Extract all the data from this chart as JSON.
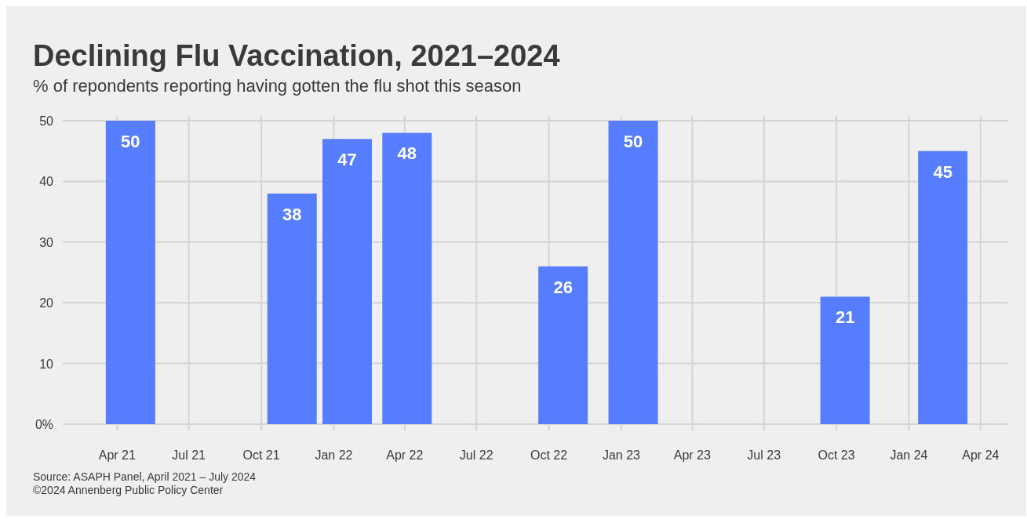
{
  "chart_data": {
    "type": "bar",
    "title": "Declining Flu Vaccination, 2021–2024",
    "subtitle": "% of repondents reporting having gotten the flu shot this season",
    "x": [
      "2021-04-18",
      "2021-11-09",
      "2022-01-18",
      "2022-04-04",
      "2022-10-19",
      "2023-01-16",
      "2023-10-12",
      "2024-02-13"
    ],
    "values": [
      50,
      38,
      47,
      48,
      26,
      50,
      21,
      45
    ],
    "color": "#577dff",
    "data_labels": true,
    "xlim": [
      "2021-01-22",
      "2024-05-06"
    ],
    "xticks": [
      {
        "value": "2021-04-01",
        "label": "Apr 21"
      },
      {
        "value": "2021-07-01",
        "label": "Jul 21"
      },
      {
        "value": "2021-10-01",
        "label": "Oct 21"
      },
      {
        "value": "2022-01-01",
        "label": "Jan 22"
      },
      {
        "value": "2022-04-01",
        "label": "Apr 22"
      },
      {
        "value": "2022-07-01",
        "label": "Jul 22"
      },
      {
        "value": "2022-10-01",
        "label": "Oct 22"
      },
      {
        "value": "2023-01-01",
        "label": "Jan 23"
      },
      {
        "value": "2023-04-01",
        "label": "Apr 23"
      },
      {
        "value": "2023-07-01",
        "label": "Jul 23"
      },
      {
        "value": "2023-10-01",
        "label": "Oct 23"
      },
      {
        "value": "2024-01-01",
        "label": "Jan 24"
      },
      {
        "value": "2024-04-01",
        "label": "Apr 24"
      }
    ],
    "ylim": [
      0,
      50
    ],
    "yticks": [
      {
        "value": 0,
        "label": "0%"
      },
      10,
      20,
      30,
      40,
      50
    ],
    "grid": true,
    "annotations": [
      "Source: ASAPH Panel, April 2021 – July 2024",
      "©2024 Annenberg Public Policy Center"
    ]
  }
}
